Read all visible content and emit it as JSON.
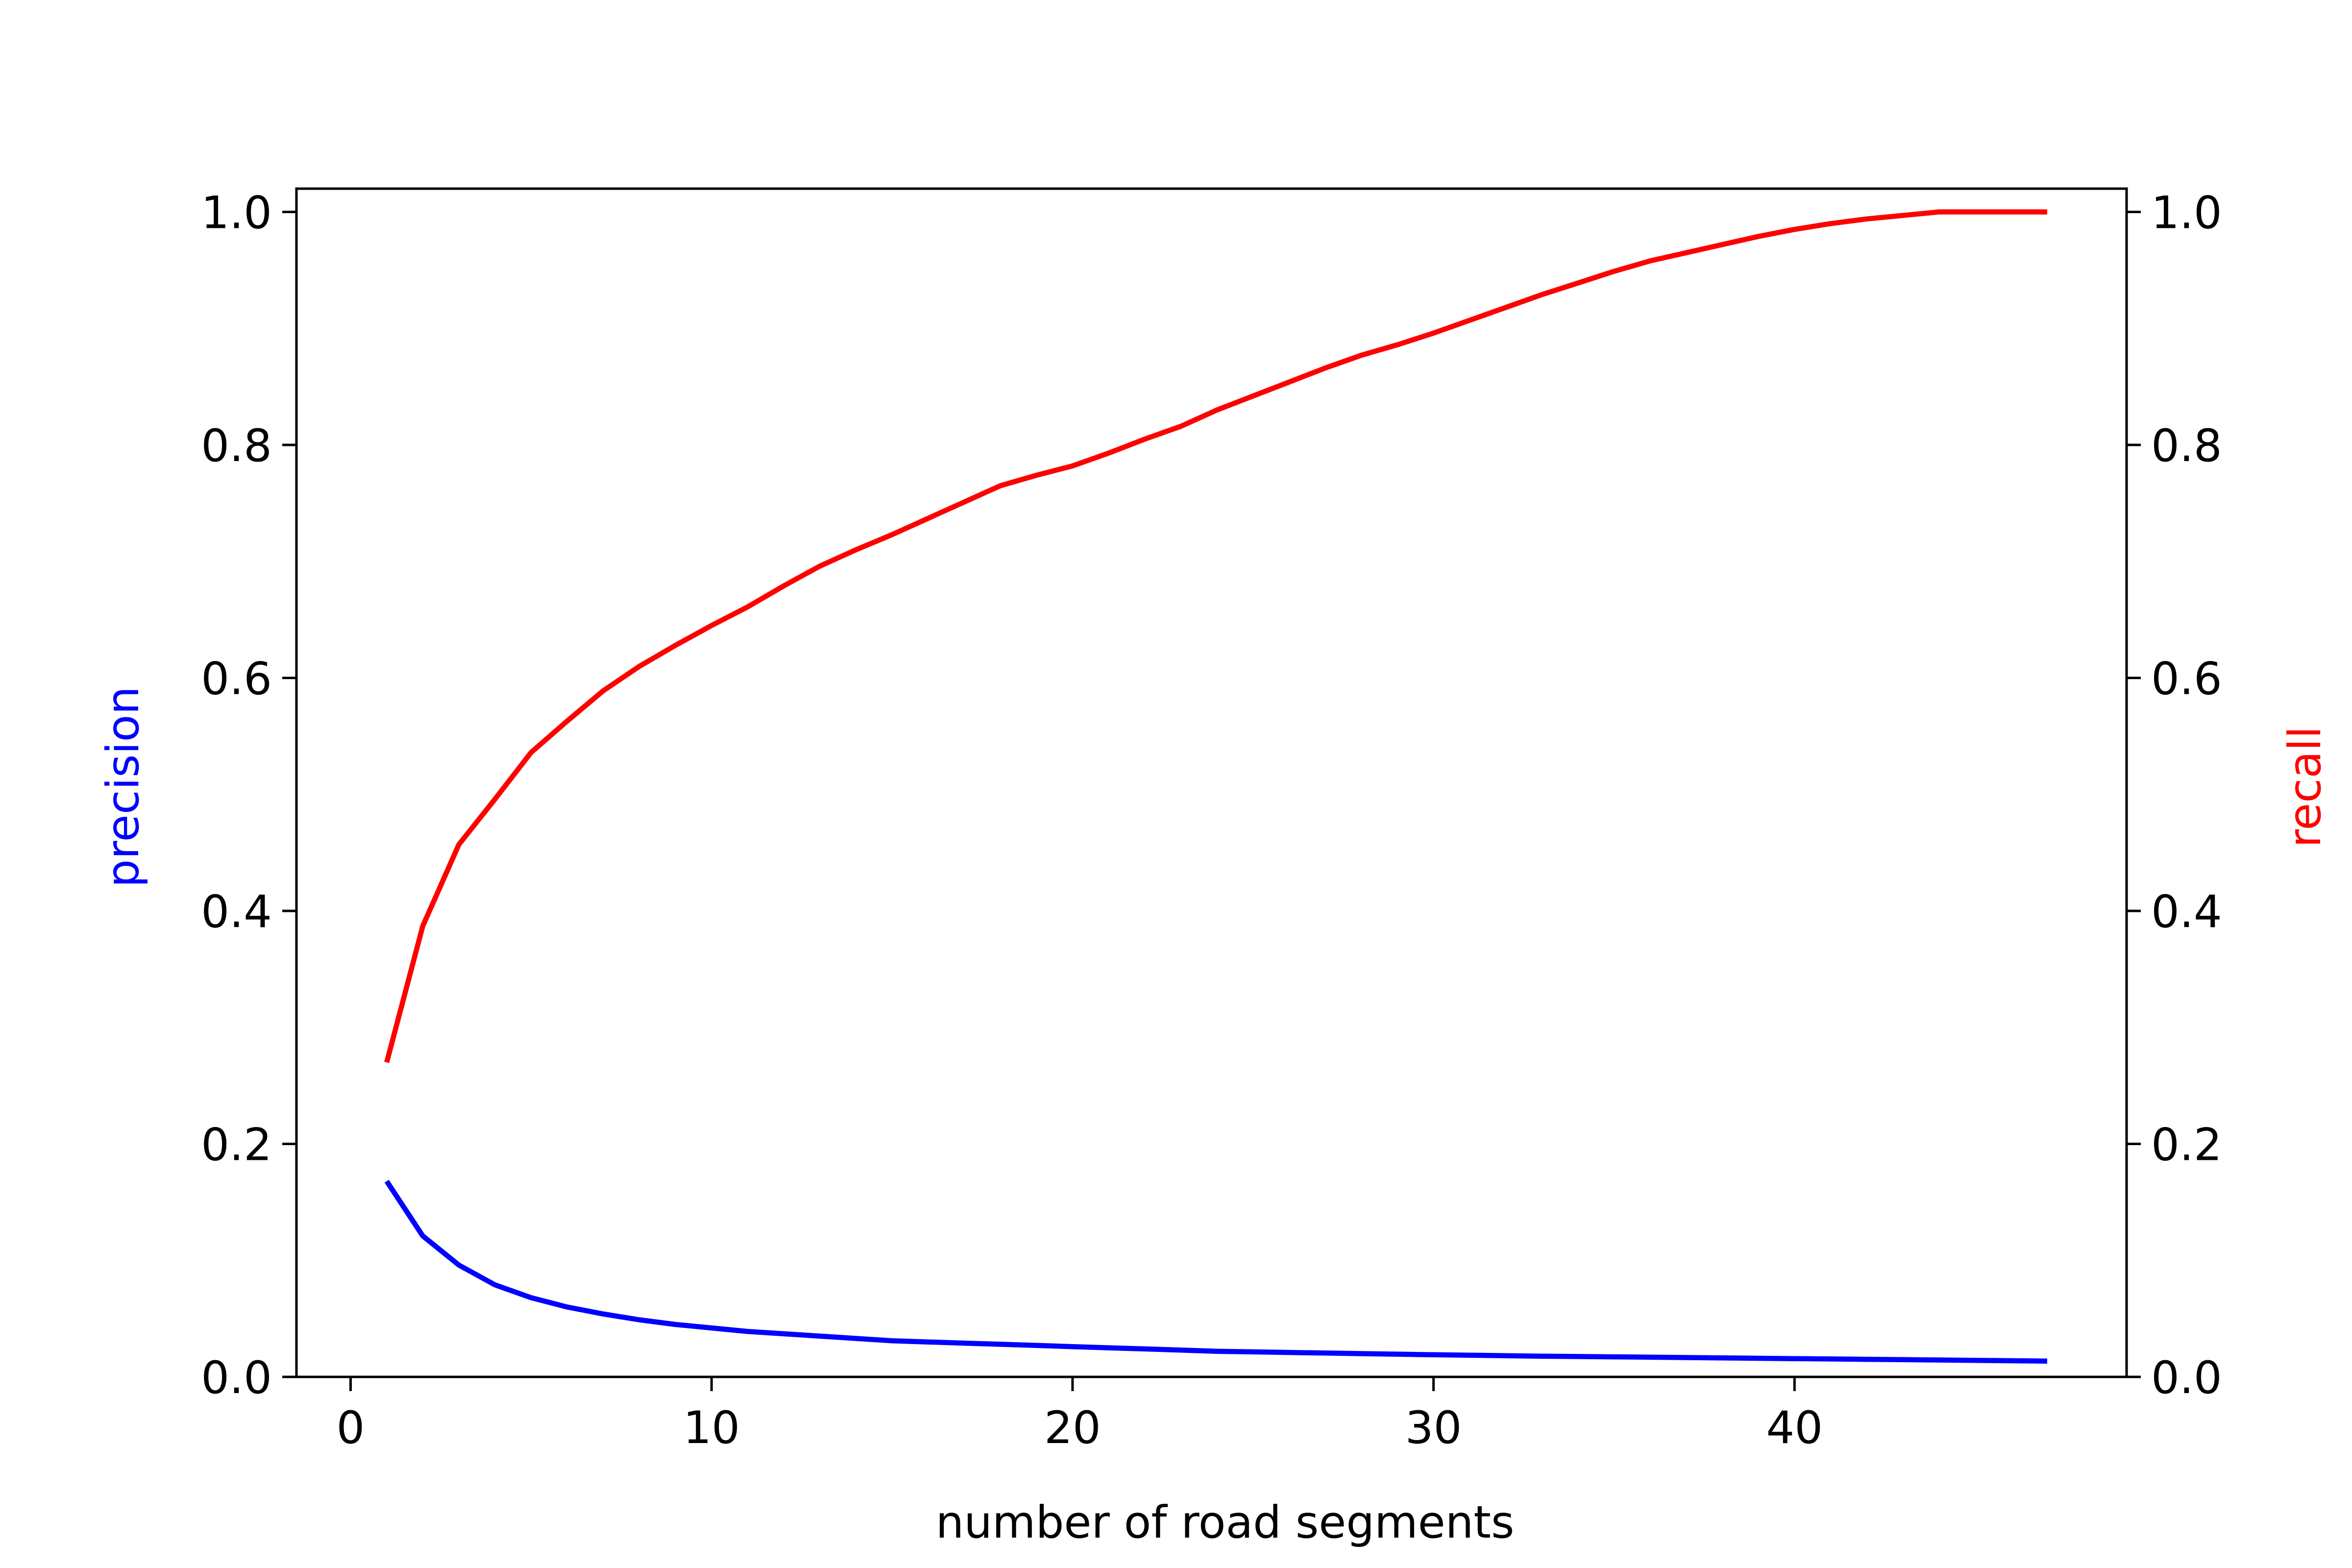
{
  "chart_data": {
    "type": "line",
    "xlabel": "number of road segments",
    "ylabel_left": "precision",
    "ylabel_right": "recall",
    "xlim": [
      -1.5,
      49.2
    ],
    "ylim_left": [
      0.0,
      1.02
    ],
    "ylim_right": [
      0.0,
      1.02
    ],
    "xticks": [
      0,
      10,
      20,
      30,
      40
    ],
    "yticks_left": [
      "0.0",
      "0.2",
      "0.4",
      "0.6",
      "0.8",
      "1.0"
    ],
    "yticks_right": [
      "0.0",
      "0.2",
      "0.4",
      "0.6",
      "0.8",
      "1.0"
    ],
    "grid": false,
    "x": [
      1,
      2,
      3,
      4,
      5,
      6,
      7,
      8,
      9,
      10,
      11,
      12,
      13,
      14,
      15,
      16,
      17,
      18,
      19,
      20,
      21,
      22,
      23,
      24,
      25,
      26,
      27,
      28,
      29,
      30,
      31,
      32,
      33,
      34,
      35,
      36,
      37,
      38,
      39,
      40,
      41,
      42,
      43,
      44,
      45,
      46,
      47
    ],
    "series": [
      {
        "name": "precision",
        "axis": "left",
        "color": "#0000ff",
        "values": [
          0.168,
          0.121,
          0.096,
          0.079,
          0.068,
          0.06,
          0.054,
          0.049,
          0.045,
          0.042,
          0.039,
          0.037,
          0.035,
          0.033,
          0.031,
          0.03,
          0.029,
          0.028,
          0.027,
          0.026,
          0.025,
          0.024,
          0.023,
          0.022,
          0.0215,
          0.021,
          0.0205,
          0.02,
          0.0195,
          0.019,
          0.0186,
          0.0182,
          0.0178,
          0.0175,
          0.0172,
          0.0169,
          0.0166,
          0.0163,
          0.016,
          0.0157,
          0.0154,
          0.0151,
          0.0148,
          0.0145,
          0.0142,
          0.0139,
          0.0136
        ]
      },
      {
        "name": "recall",
        "axis": "right",
        "color": "#ff0000",
        "values": [
          0.27,
          0.387,
          0.457,
          0.496,
          0.536,
          0.563,
          0.589,
          0.61,
          0.628,
          0.645,
          0.661,
          0.679,
          0.696,
          0.71,
          0.723,
          0.737,
          0.751,
          0.765,
          0.774,
          0.782,
          0.793,
          0.805,
          0.816,
          0.83,
          0.842,
          0.854,
          0.866,
          0.877,
          0.886,
          0.896,
          0.907,
          0.918,
          0.929,
          0.939,
          0.949,
          0.958,
          0.965,
          0.972,
          0.979,
          0.985,
          0.99,
          0.994,
          0.997,
          1.0,
          1.0,
          1.0,
          1.0
        ]
      }
    ]
  }
}
